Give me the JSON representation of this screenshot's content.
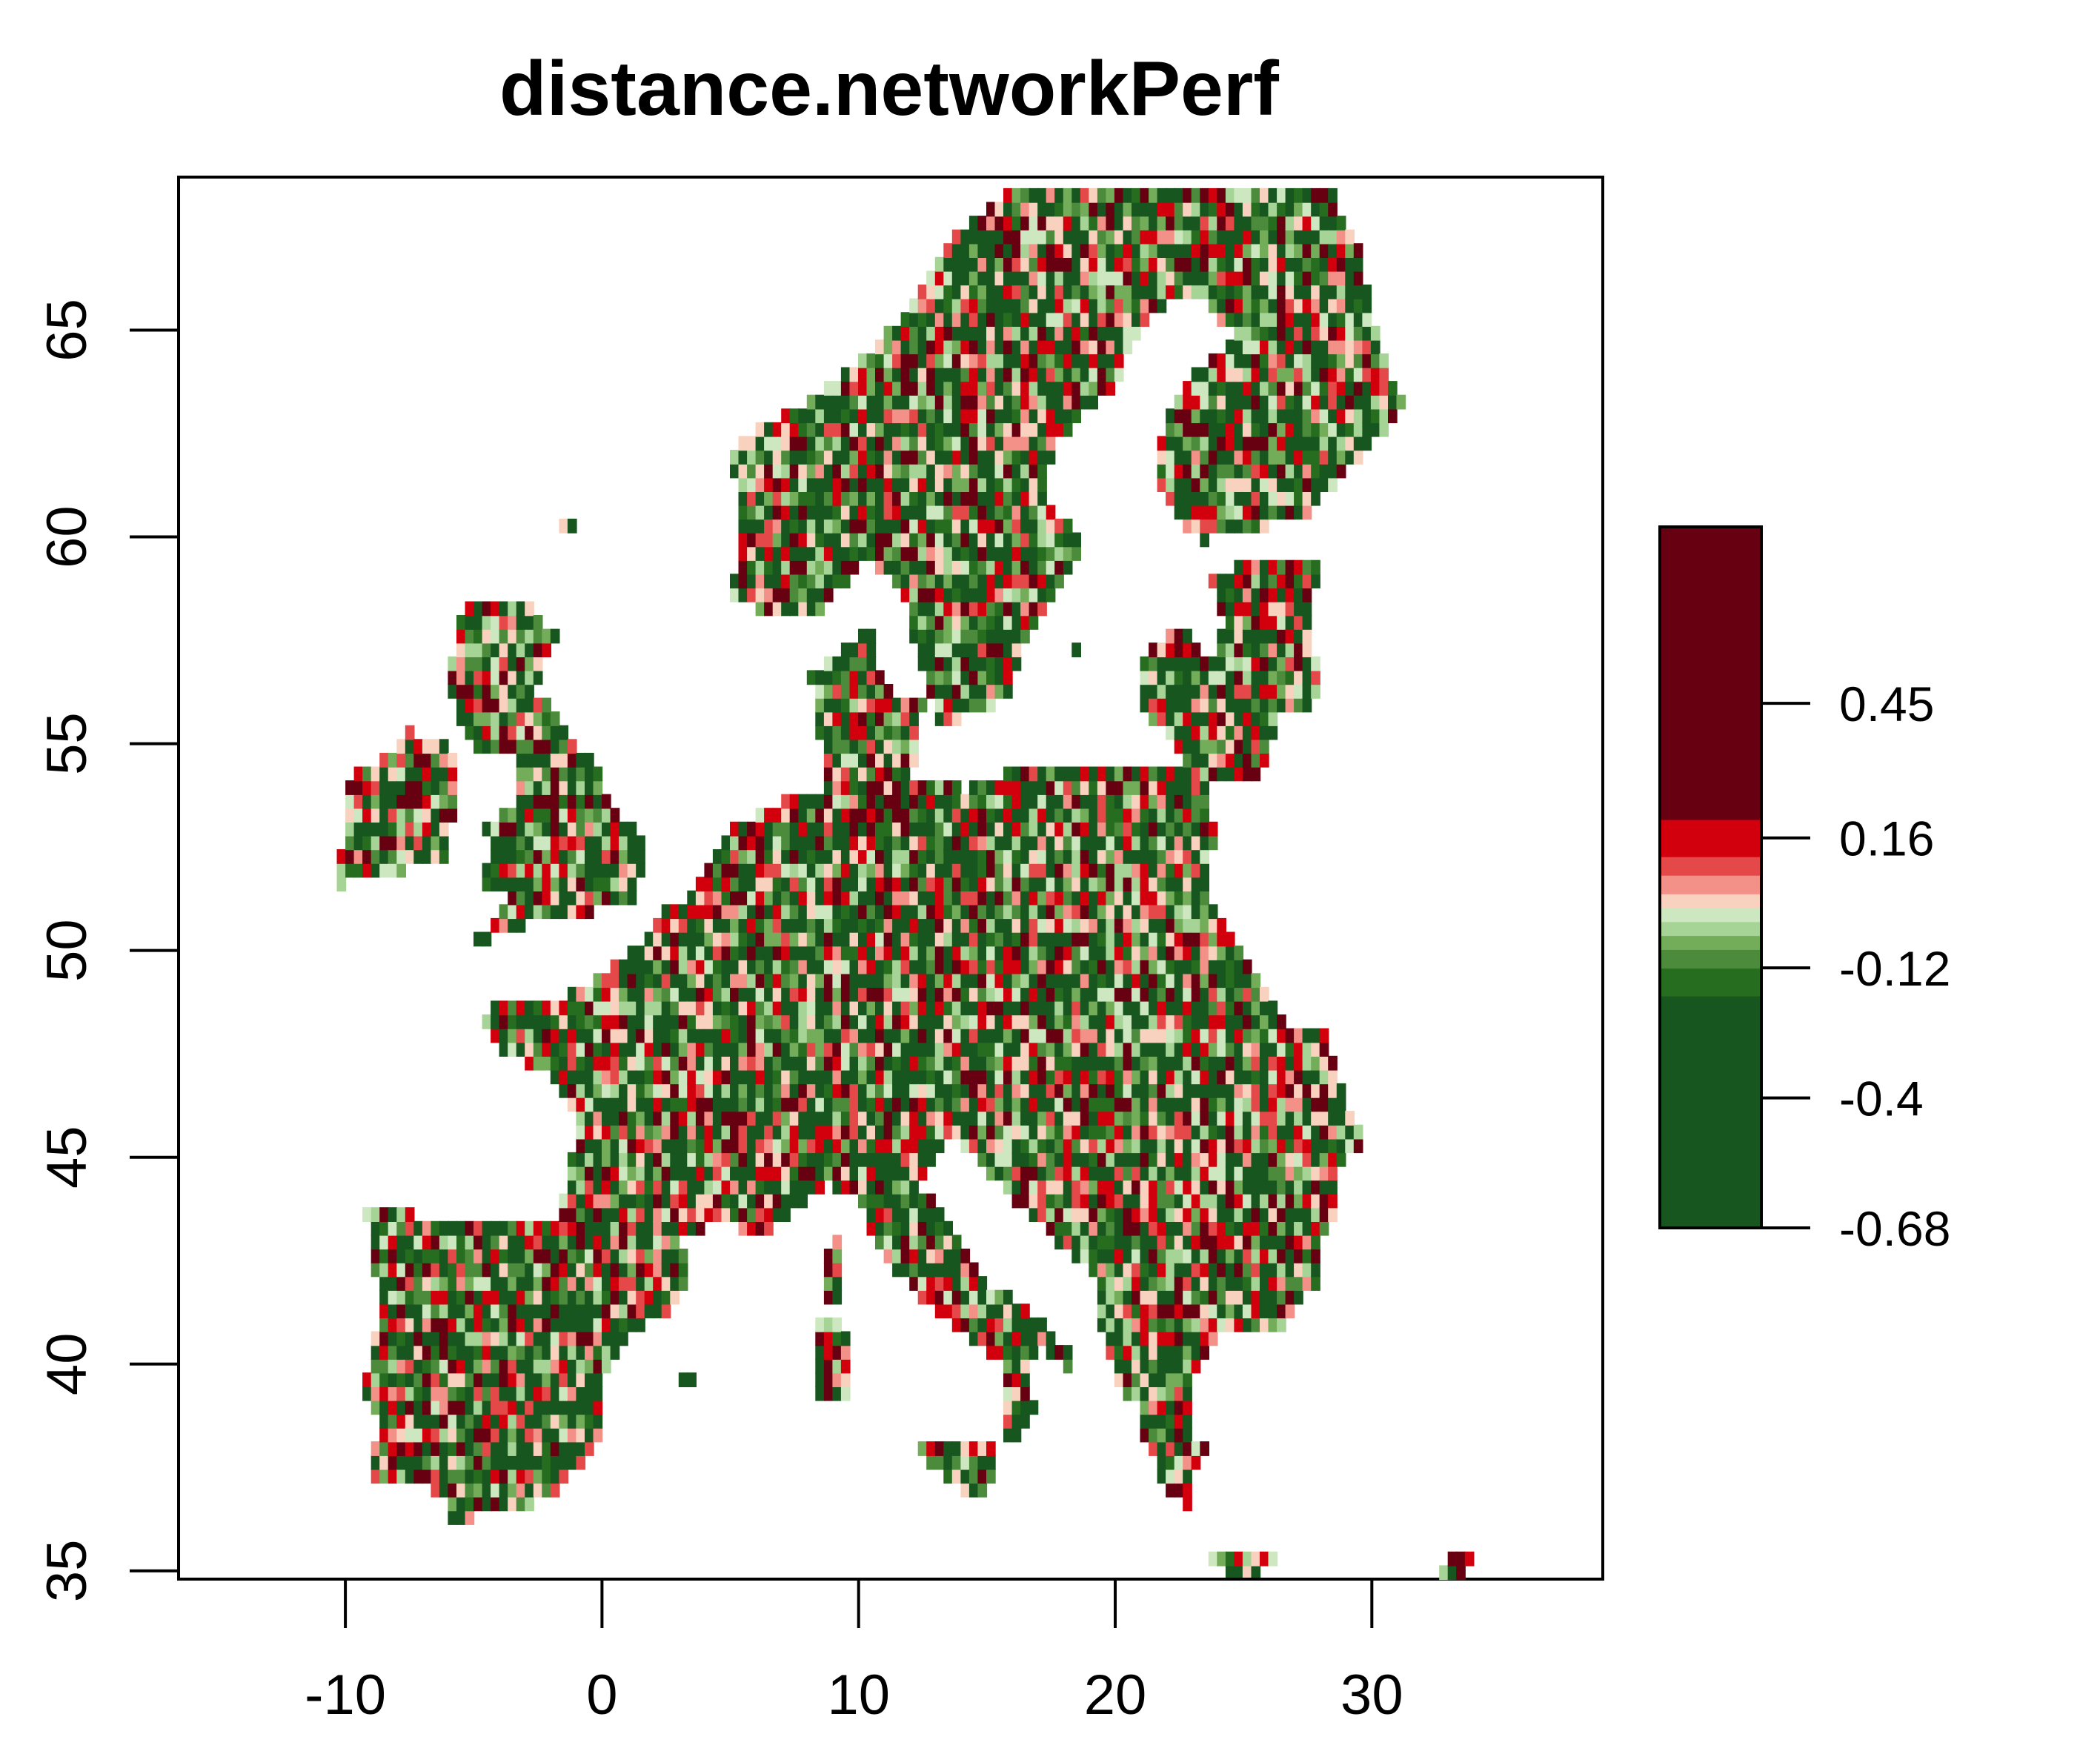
{
  "title": "distance.networkPerf",
  "map": {
    "type": "raster",
    "x_ticks": [
      -10,
      0,
      10,
      20,
      30
    ],
    "y_ticks": [
      35,
      40,
      45,
      50,
      55,
      60,
      65
    ],
    "x_range": [
      -16.5,
      39.0
    ],
    "y_range": [
      34.8,
      68.7
    ]
  },
  "legend": {
    "tick_labels": [
      "0.45",
      "0.16",
      "-0.12",
      "-0.4",
      "-0.68"
    ],
    "tick_values": [
      0.45,
      0.16,
      -0.12,
      -0.4,
      -0.68
    ],
    "range": [
      -0.68,
      0.83
    ],
    "color_bands": [
      {
        "from": -0.68,
        "to": -0.18,
        "color": "#17561F"
      },
      {
        "from": -0.18,
        "to": -0.12,
        "color": "#266D1F"
      },
      {
        "from": -0.12,
        "to": -0.08,
        "color": "#4B8B3B"
      },
      {
        "from": -0.08,
        "to": -0.05,
        "color": "#74AD5A"
      },
      {
        "from": -0.05,
        "to": -0.02,
        "color": "#A6D496"
      },
      {
        "from": -0.02,
        "to": 0.01,
        "color": "#CDE8C0"
      },
      {
        "from": 0.01,
        "to": 0.04,
        "color": "#F8D2BF"
      },
      {
        "from": 0.04,
        "to": 0.08,
        "color": "#F39088"
      },
      {
        "from": 0.08,
        "to": 0.12,
        "color": "#E54848"
      },
      {
        "from": 0.12,
        "to": 0.2,
        "color": "#D1000C"
      },
      {
        "from": 0.2,
        "to": 0.83,
        "color": "#670010"
      }
    ]
  },
  "regions": [
    {
      "name": "iberia",
      "points": [
        [
          -9.3,
          43.7
        ],
        [
          -8.0,
          43.7
        ],
        [
          -5.0,
          43.4
        ],
        [
          -1.8,
          43.4
        ],
        [
          3.2,
          42.3
        ],
        [
          3.1,
          41.5
        ],
        [
          0.8,
          40.6
        ],
        [
          -0.1,
          39.3
        ],
        [
          0.2,
          38.7
        ],
        [
          -0.7,
          37.6
        ],
        [
          -2.2,
          36.7
        ],
        [
          -4.6,
          36.4
        ],
        [
          -5.6,
          36.0
        ],
        [
          -6.3,
          36.8
        ],
        [
          -7.4,
          37.2
        ],
        [
          -8.9,
          37.0
        ],
        [
          -8.8,
          38.7
        ],
        [
          -9.4,
          39.4
        ],
        [
          -8.7,
          41.0
        ],
        [
          -8.9,
          42.5
        ]
      ]
    },
    {
      "name": "france",
      "points": [
        [
          -4.7,
          48.6
        ],
        [
          -1.6,
          48.8
        ],
        [
          1.6,
          50.2
        ],
        [
          2.5,
          51.1
        ],
        [
          4.2,
          49.9
        ],
        [
          6.2,
          49.5
        ],
        [
          8.2,
          49.0
        ],
        [
          7.6,
          47.6
        ],
        [
          6.8,
          47.3
        ],
        [
          6.1,
          46.2
        ],
        [
          7.0,
          45.9
        ],
        [
          6.9,
          44.4
        ],
        [
          7.5,
          43.8
        ],
        [
          6.3,
          43.1
        ],
        [
          4.6,
          43.4
        ],
        [
          3.1,
          43.1
        ],
        [
          3.2,
          42.4
        ],
        [
          1.7,
          42.5
        ],
        [
          -1.8,
          43.4
        ],
        [
          -1.2,
          44.7
        ],
        [
          -1.1,
          46.1
        ],
        [
          -2.1,
          47.0
        ],
        [
          -4.4,
          47.8
        ]
      ]
    },
    {
      "name": "central",
      "points": [
        [
          2.5,
          51.1
        ],
        [
          3.6,
          51.4
        ],
        [
          4.8,
          52.9
        ],
        [
          7.0,
          53.6
        ],
        [
          8.6,
          53.9
        ],
        [
          8.5,
          55.1
        ],
        [
          8.1,
          56.6
        ],
        [
          9.8,
          57.6
        ],
        [
          10.6,
          57.7
        ],
        [
          10.9,
          56.4
        ],
        [
          12.5,
          56.0
        ],
        [
          12.1,
          54.2
        ],
        [
          14.2,
          53.9
        ],
        [
          16.9,
          54.6
        ],
        [
          19.3,
          54.5
        ],
        [
          22.8,
          54.4
        ],
        [
          23.5,
          53.9
        ],
        [
          23.9,
          52.7
        ],
        [
          23.6,
          51.5
        ],
        [
          24.1,
          50.9
        ],
        [
          22.6,
          49.1
        ],
        [
          20.9,
          49.3
        ],
        [
          18.9,
          49.5
        ],
        [
          17.2,
          48.0
        ],
        [
          16.9,
          46.4
        ],
        [
          15.6,
          46.0
        ],
        [
          13.7,
          45.5
        ],
        [
          12.3,
          46.0
        ],
        [
          10.5,
          46.5
        ],
        [
          9.0,
          45.9
        ],
        [
          7.0,
          45.9
        ],
        [
          6.1,
          46.2
        ],
        [
          6.8,
          47.3
        ],
        [
          7.6,
          47.6
        ],
        [
          8.2,
          49.0
        ],
        [
          6.2,
          49.5
        ],
        [
          4.2,
          49.9
        ]
      ]
    },
    {
      "name": "italy",
      "points": [
        [
          7.0,
          45.9
        ],
        [
          9.0,
          45.9
        ],
        [
          10.5,
          46.5
        ],
        [
          12.3,
          46.0
        ],
        [
          13.7,
          45.5
        ],
        [
          12.4,
          44.3
        ],
        [
          13.6,
          43.5
        ],
        [
          14.7,
          42.0
        ],
        [
          16.1,
          41.6
        ],
        [
          18.5,
          40.2
        ],
        [
          18.3,
          39.8
        ],
        [
          17.1,
          40.4
        ],
        [
          16.5,
          39.6
        ],
        [
          17.1,
          38.9
        ],
        [
          16.1,
          38.0
        ],
        [
          15.6,
          38.2
        ],
        [
          15.7,
          39.9
        ],
        [
          15.1,
          40.2
        ],
        [
          14.0,
          40.8
        ],
        [
          12.6,
          41.5
        ],
        [
          11.1,
          42.4
        ],
        [
          10.5,
          43.0
        ],
        [
          10.2,
          43.9
        ],
        [
          8.7,
          44.4
        ],
        [
          7.5,
          43.8
        ],
        [
          6.9,
          44.4
        ]
      ]
    },
    {
      "name": "sicily",
      "points": [
        [
          12.4,
          38.1
        ],
        [
          13.3,
          38.2
        ],
        [
          15.6,
          38.3
        ],
        [
          15.1,
          37.0
        ],
        [
          14.4,
          36.7
        ],
        [
          12.4,
          37.7
        ]
      ]
    },
    {
      "name": "sardinia",
      "points": [
        [
          8.2,
          41.1
        ],
        [
          9.3,
          41.2
        ],
        [
          9.8,
          40.5
        ],
        [
          9.6,
          39.2
        ],
        [
          8.5,
          38.9
        ],
        [
          8.4,
          40.0
        ]
      ]
    },
    {
      "name": "corsica",
      "points": [
        [
          8.6,
          42.9
        ],
        [
          9.4,
          43.0
        ],
        [
          9.5,
          42.1
        ],
        [
          9.2,
          41.4
        ],
        [
          8.6,
          41.7
        ]
      ]
    },
    {
      "name": "balkans",
      "points": [
        [
          13.7,
          45.5
        ],
        [
          15.6,
          46.0
        ],
        [
          16.9,
          46.4
        ],
        [
          17.2,
          48.0
        ],
        [
          18.9,
          49.5
        ],
        [
          20.9,
          49.3
        ],
        [
          22.6,
          49.1
        ],
        [
          24.1,
          50.9
        ],
        [
          26.6,
          48.3
        ],
        [
          28.2,
          48.1
        ],
        [
          28.7,
          46.9
        ],
        [
          29.7,
          45.3
        ],
        [
          28.8,
          44.9
        ],
        [
          28.6,
          43.7
        ],
        [
          28.0,
          43.0
        ],
        [
          28.0,
          42.0
        ],
        [
          26.4,
          40.9
        ],
        [
          26.1,
          40.6
        ],
        [
          25.5,
          40.8
        ],
        [
          24.0,
          40.7
        ],
        [
          23.3,
          39.8
        ],
        [
          22.8,
          39.6
        ],
        [
          23.0,
          38.2
        ],
        [
          24.0,
          38.2
        ],
        [
          23.2,
          37.6
        ],
        [
          22.8,
          36.6
        ],
        [
          22.1,
          36.8
        ],
        [
          21.6,
          37.6
        ],
        [
          21.2,
          37.9
        ],
        [
          20.8,
          39.0
        ],
        [
          20.0,
          39.7
        ],
        [
          19.4,
          41.0
        ],
        [
          19.4,
          41.9
        ],
        [
          18.5,
          42.5
        ],
        [
          17.0,
          43.4
        ],
        [
          15.9,
          44.0
        ],
        [
          14.4,
          45.1
        ]
      ]
    },
    {
      "name": "crete",
      "points": [
        [
          23.5,
          35.6
        ],
        [
          26.3,
          35.4
        ],
        [
          26.2,
          35.0
        ],
        [
          24.7,
          34.9
        ],
        [
          23.5,
          35.2
        ]
      ]
    },
    {
      "name": "cyprus",
      "points": [
        [
          32.3,
          35.2
        ],
        [
          33.9,
          35.4
        ],
        [
          34.6,
          35.6
        ],
        [
          33.0,
          34.6
        ]
      ]
    },
    {
      "name": "great-britain",
      "points": [
        [
          -5.7,
          50.0
        ],
        [
          -3.0,
          50.6
        ],
        [
          1.4,
          51.2
        ],
        [
          1.7,
          52.7
        ],
        [
          0.3,
          53.4
        ],
        [
          -0.1,
          54.4
        ],
        [
          -1.5,
          55.3
        ],
        [
          -2.0,
          56.0
        ],
        [
          -2.7,
          56.3
        ],
        [
          -1.8,
          57.6
        ],
        [
          -3.0,
          58.6
        ],
        [
          -5.0,
          58.6
        ],
        [
          -5.7,
          57.8
        ],
        [
          -6.0,
          56.6
        ],
        [
          -5.5,
          55.5
        ],
        [
          -4.9,
          55.0
        ],
        [
          -5.0,
          54.6
        ],
        [
          -3.2,
          54.8
        ],
        [
          -3.4,
          53.4
        ],
        [
          -4.6,
          53.1
        ],
        [
          -4.2,
          52.2
        ],
        [
          -5.3,
          51.7
        ],
        [
          -3.5,
          51.4
        ],
        [
          -4.5,
          50.6
        ]
      ]
    },
    {
      "name": "ireland",
      "points": [
        [
          -10.2,
          51.6
        ],
        [
          -6.0,
          52.2
        ],
        [
          -5.5,
          54.6
        ],
        [
          -6.1,
          55.2
        ],
        [
          -7.5,
          55.3
        ],
        [
          -8.6,
          54.6
        ],
        [
          -10.0,
          54.2
        ],
        [
          -9.9,
          53.3
        ],
        [
          -10.3,
          52.1
        ]
      ]
    },
    {
      "name": "scandinavia",
      "points": [
        [
          5.0,
          58.5
        ],
        [
          5.5,
          60.0
        ],
        [
          5.0,
          62.0
        ],
        [
          6.0,
          62.6
        ],
        [
          7.8,
          63.2
        ],
        [
          10.0,
          64.3
        ],
        [
          12.0,
          65.5
        ],
        [
          13.5,
          67.2
        ],
        [
          15.3,
          68.2
        ],
        [
          17.8,
          68.8
        ],
        [
          21.0,
          70.0
        ],
        [
          25.0,
          71.0
        ],
        [
          30.0,
          70.3
        ],
        [
          30.8,
          69.5
        ],
        [
          28.3,
          68.9
        ],
        [
          28.8,
          67.8
        ],
        [
          29.6,
          66.9
        ],
        [
          29.9,
          65.6
        ],
        [
          30.3,
          64.5
        ],
        [
          31.3,
          63.2
        ],
        [
          29.5,
          61.9
        ],
        [
          27.3,
          60.5
        ],
        [
          23.5,
          59.9
        ],
        [
          22.4,
          60.4
        ],
        [
          21.5,
          61.6
        ],
        [
          22.3,
          63.4
        ],
        [
          24.6,
          64.9
        ],
        [
          23.0,
          66.0
        ],
        [
          21.4,
          65.4
        ],
        [
          19.9,
          63.6
        ],
        [
          17.8,
          62.4
        ],
        [
          17.2,
          61.0
        ],
        [
          18.8,
          59.9
        ],
        [
          17.7,
          58.7
        ],
        [
          16.5,
          57.5
        ],
        [
          15.9,
          56.1
        ],
        [
          13.0,
          55.4
        ],
        [
          12.6,
          56.6
        ],
        [
          11.8,
          58.3
        ],
        [
          11.1,
          59.0
        ],
        [
          10.4,
          59.5
        ],
        [
          9.6,
          58.9
        ],
        [
          8.1,
          58.0
        ],
        [
          6.5,
          58.1
        ]
      ]
    },
    {
      "name": "baltics",
      "points": [
        [
          21.0,
          56.0
        ],
        [
          21.1,
          57.2
        ],
        [
          22.5,
          57.8
        ],
        [
          23.7,
          57.1
        ],
        [
          24.3,
          57.9
        ],
        [
          23.5,
          59.2
        ],
        [
          28.0,
          59.5
        ],
        [
          27.5,
          57.8
        ],
        [
          28.2,
          56.1
        ],
        [
          26.5,
          55.7
        ],
        [
          25.8,
          54.3
        ],
        [
          23.5,
          53.9
        ],
        [
          22.8,
          54.4
        ]
      ]
    },
    {
      "name": "gotland",
      "points": [
        [
          18.1,
          57.2
        ],
        [
          18.8,
          57.6
        ],
        [
          19.0,
          57.9
        ],
        [
          18.4,
          57.0
        ]
      ]
    },
    {
      "name": "shetland",
      "points": [
        [
          -1.7,
          60.5
        ],
        [
          -1.0,
          60.6
        ],
        [
          -1.1,
          60.0
        ],
        [
          -1.5,
          60.1
        ]
      ]
    },
    {
      "name": "balearics",
      "points": [
        [
          1.3,
          39.0
        ],
        [
          4.3,
          40.1
        ],
        [
          3.0,
          39.3
        ],
        [
          2.3,
          39.5
        ]
      ]
    }
  ]
}
